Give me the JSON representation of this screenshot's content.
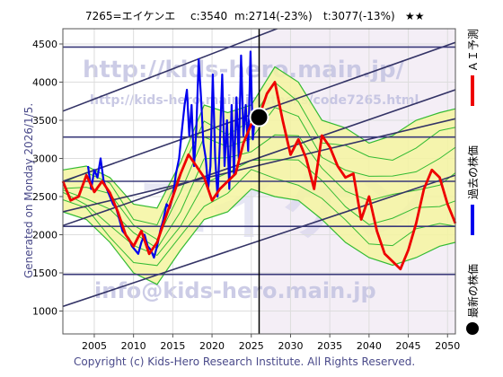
{
  "header": {
    "code": "7265=エイケンエ",
    "current": "c:3540",
    "mean": "m:2714(-23%)",
    "target": "t:3077(-13%)",
    "stars": "★★"
  },
  "generated_label": "Generated on Monday 2026/1/5.",
  "watermarks": {
    "url_main": "http://kids-hero.main.jp/",
    "url_code": "http://kids-hero.main.jp/stocks/code7265.html",
    "email": "info@kids-hero.main.jp",
    "big_text": "エイケン"
  },
  "copyright": "Copyright (c) Kids-Hero Research Institute. All Rights Reserved.",
  "legend": {
    "forecast": "ＡＩ予測",
    "past": "過去の株価",
    "latest": "最新の株価"
  },
  "colors": {
    "forecast": "#ee0000",
    "past": "#0000ee",
    "latest": "#000000",
    "band_fill": "#f5f5a0",
    "band_line": "#33bb33",
    "trend_line": "#333366",
    "hline": "#3a3a7a"
  },
  "chart_data": {
    "type": "line",
    "title": "",
    "xlabel": "",
    "ylabel": "",
    "xlim": [
      2001,
      2051
    ],
    "ylim": [
      700,
      4700
    ],
    "x_ticks": [
      2005,
      2010,
      2015,
      2020,
      2025,
      2030,
      2035,
      2040,
      2045,
      2050
    ],
    "y_ticks": [
      1000,
      1500,
      2000,
      2500,
      3000,
      3500,
      4000,
      4500
    ],
    "current_marker": {
      "x": 2026.0,
      "y": 3540
    },
    "current_date_line_x": 2026.0,
    "horizontal_levels": [
      1480,
      2110,
      2700,
      3280,
      4460
    ],
    "trend_lines": [
      {
        "x": [
          2001,
          2051
        ],
        "y": [
          1060,
          2780
        ]
      },
      {
        "x": [
          2001,
          2051
        ],
        "y": [
          2120,
          3900
        ]
      },
      {
        "x": [
          2001,
          2051
        ],
        "y": [
          2700,
          4520
        ]
      },
      {
        "x": [
          2001,
          2051
        ],
        "y": [
          3620,
          5600
        ]
      },
      {
        "x": [
          2001,
          2051
        ],
        "y": [
          2300,
          3520
        ]
      }
    ],
    "series": [
      {
        "name": "過去の株価",
        "x": [
          2004.2,
          2004.6,
          2005.0,
          2005.4,
          2005.8,
          2006.2,
          2006.6,
          2007.0,
          2007.4,
          2007.8,
          2008.2,
          2008.6,
          2009.0,
          2009.4,
          2009.8,
          2010.2,
          2010.6,
          2011.0,
          2011.4,
          2011.8,
          2012.2,
          2012.6,
          2013.0,
          2013.4,
          2013.8,
          2014.2,
          2014.6,
          2015.0,
          2015.4,
          2015.8,
          2016.2,
          2016.5,
          2016.8,
          2017.1,
          2017.4,
          2017.7,
          2018.0,
          2018.3,
          2018.6,
          2018.9,
          2019.2,
          2019.5,
          2019.8,
          2020.1,
          2020.4,
          2020.7,
          2021.0,
          2021.3,
          2021.6,
          2021.9,
          2022.2,
          2022.5,
          2022.8,
          2023.1,
          2023.4,
          2023.7,
          2024.0,
          2024.3,
          2024.6,
          2024.9,
          2025.2,
          2025.5,
          2025.8,
          2026.0
        ],
        "y": [
          2900,
          2600,
          2850,
          2750,
          3000,
          2700,
          2600,
          2500,
          2400,
          2350,
          2200,
          2050,
          2000,
          1950,
          1850,
          1800,
          1750,
          1900,
          2000,
          1850,
          1800,
          1700,
          1850,
          2050,
          2200,
          2400,
          2350,
          2500,
          2800,
          3000,
          3400,
          3700,
          3900,
          3300,
          3700,
          2900,
          3400,
          4300,
          3800,
          3200,
          3000,
          2600,
          2900,
          4100,
          3000,
          2500,
          3200,
          4100,
          2900,
          3500,
          2600,
          3700,
          2800,
          3800,
          3000,
          4350,
          3300,
          3700,
          3100,
          4400,
          3250,
          3600,
          3450,
          3540
        ]
      },
      {
        "name": "ＡＩ予測",
        "x": [
          2001,
          2002,
          2003,
          2004,
          2005,
          2006,
          2007,
          2008,
          2009,
          2010,
          2011,
          2012,
          2013,
          2014,
          2015,
          2016,
          2017,
          2018,
          2019,
          2020,
          2021,
          2022,
          2023,
          2024,
          2025,
          2026,
          2027,
          2028,
          2029,
          2030,
          2031,
          2032,
          2033,
          2034,
          2035,
          2036,
          2037,
          2038,
          2039,
          2040,
          2041,
          2042,
          2043,
          2044,
          2045,
          2046,
          2047,
          2048,
          2049,
          2050,
          2051
        ],
        "y": [
          2700,
          2450,
          2500,
          2780,
          2560,
          2700,
          2550,
          2300,
          2000,
          1850,
          2050,
          1750,
          1900,
          2200,
          2500,
          2800,
          3050,
          2900,
          2750,
          2450,
          2600,
          2700,
          2800,
          3200,
          3450,
          3550,
          3850,
          4000,
          3500,
          3050,
          3250,
          3000,
          2600,
          3300,
          3150,
          2900,
          2750,
          2800,
          2200,
          2500,
          2050,
          1750,
          1650,
          1550,
          1800,
          2150,
          2600,
          2850,
          2750,
          2400,
          2150
        ]
      }
    ],
    "band": {
      "x": [
        2001,
        2004,
        2007,
        2010,
        2013,
        2016,
        2019,
        2022,
        2025,
        2028,
        2031,
        2034,
        2037,
        2040,
        2043,
        2046,
        2049,
        2051
      ],
      "upper": [
        2850,
        2900,
        2750,
        2400,
        2350,
        2950,
        3700,
        3600,
        3700,
        4200,
        4000,
        3500,
        3400,
        3200,
        3300,
        3500,
        3600,
        3650
      ],
      "lower": [
        2300,
        2200,
        1900,
        1500,
        1350,
        1800,
        2200,
        2300,
        2600,
        2500,
        2450,
        2200,
        1900,
        1700,
        1600,
        1700,
        1850,
        1900
      ]
    }
  }
}
